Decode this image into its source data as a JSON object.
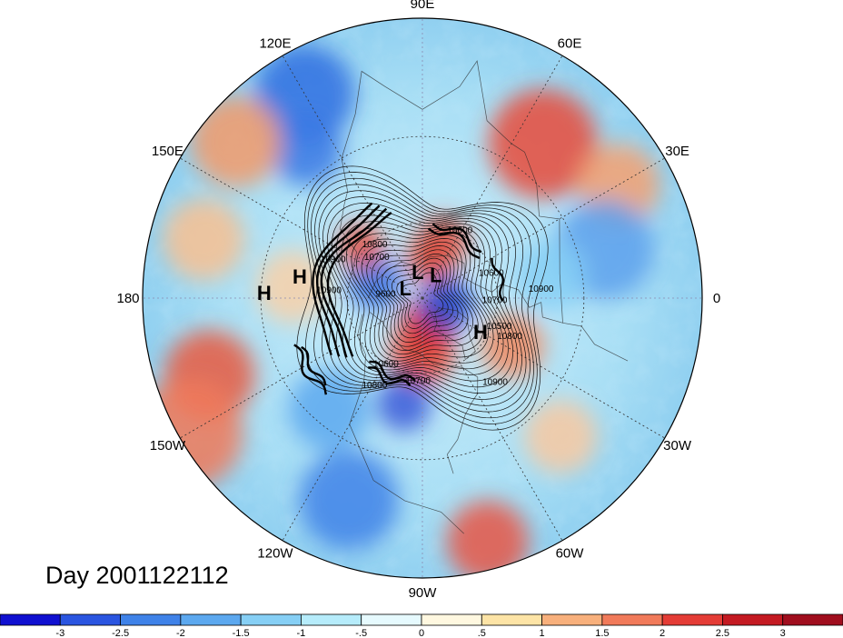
{
  "title": "Day 2001122112",
  "longitude_labels": [
    {
      "text": "90E",
      "lon": 90
    },
    {
      "text": "60E",
      "lon": 60
    },
    {
      "text": "30E",
      "lon": 30
    },
    {
      "text": "0",
      "lon": 0
    },
    {
      "text": "30W",
      "lon": -30
    },
    {
      "text": "60W",
      "lon": -60
    },
    {
      "text": "90W",
      "lon": -90
    },
    {
      "text": "120W",
      "lon": -120
    },
    {
      "text": "150W",
      "lon": -150
    },
    {
      "text": "180",
      "lon": 180
    },
    {
      "text": "150E",
      "lon": 150
    },
    {
      "text": "120E",
      "lon": 120
    }
  ],
  "pressure_centers": [
    {
      "type": "L",
      "lon": 150,
      "lat": 82
    },
    {
      "type": "L",
      "lon": 100,
      "lat": 79
    },
    {
      "type": "L",
      "lon": 60,
      "lat": 79
    },
    {
      "type": "H",
      "lon": -30,
      "lat": 63
    },
    {
      "type": "H",
      "lon": 170,
      "lat": 42
    },
    {
      "type": "H",
      "lon": 178,
      "lat": 31
    }
  ],
  "contour_labels": [
    {
      "text": "10900",
      "lon": 158,
      "lat": 52
    },
    {
      "text": "10900",
      "lon": 177,
      "lat": 53
    },
    {
      "text": "9600",
      "lon": 178,
      "lat": 75
    },
    {
      "text": "10800",
      "lon": 133,
      "lat": 62
    },
    {
      "text": "10700",
      "lon": 140,
      "lat": 66
    },
    {
      "text": "10600",
      "lon": 60,
      "lat": 60
    },
    {
      "text": "10600",
      "lon": 18,
      "lat": 61
    },
    {
      "text": "10700",
      "lon": -4,
      "lat": 61
    },
    {
      "text": "10900",
      "lon": 3,
      "lat": 44
    },
    {
      "text": "10500",
      "lon": -22,
      "lat": 57
    },
    {
      "text": "10800",
      "lon": -25,
      "lat": 52
    },
    {
      "text": "10900",
      "lon": -50,
      "lat": 46
    },
    {
      "text": "10700",
      "lon": -93,
      "lat": 56
    },
    {
      "text": "10600",
      "lon": -118,
      "lat": 59
    },
    {
      "text": "10800",
      "lon": -118,
      "lat": 50
    }
  ],
  "colorbar": {
    "labels": [
      "-3",
      "-2.5",
      "-2",
      "-1.5",
      "-1",
      "-.5",
      "0",
      ".5",
      "1",
      "1.5",
      "2",
      "2.5",
      "3"
    ],
    "colors": [
      "#1010d0",
      "#2a55e0",
      "#3f82e8",
      "#5ca8ef",
      "#86cff5",
      "#b6ecfb",
      "#e6fafe",
      "#fff8e0",
      "#fde4a6",
      "#f8b07c",
      "#f17a5a",
      "#e43c36",
      "#c41a22",
      "#a00e1e"
    ]
  }
}
